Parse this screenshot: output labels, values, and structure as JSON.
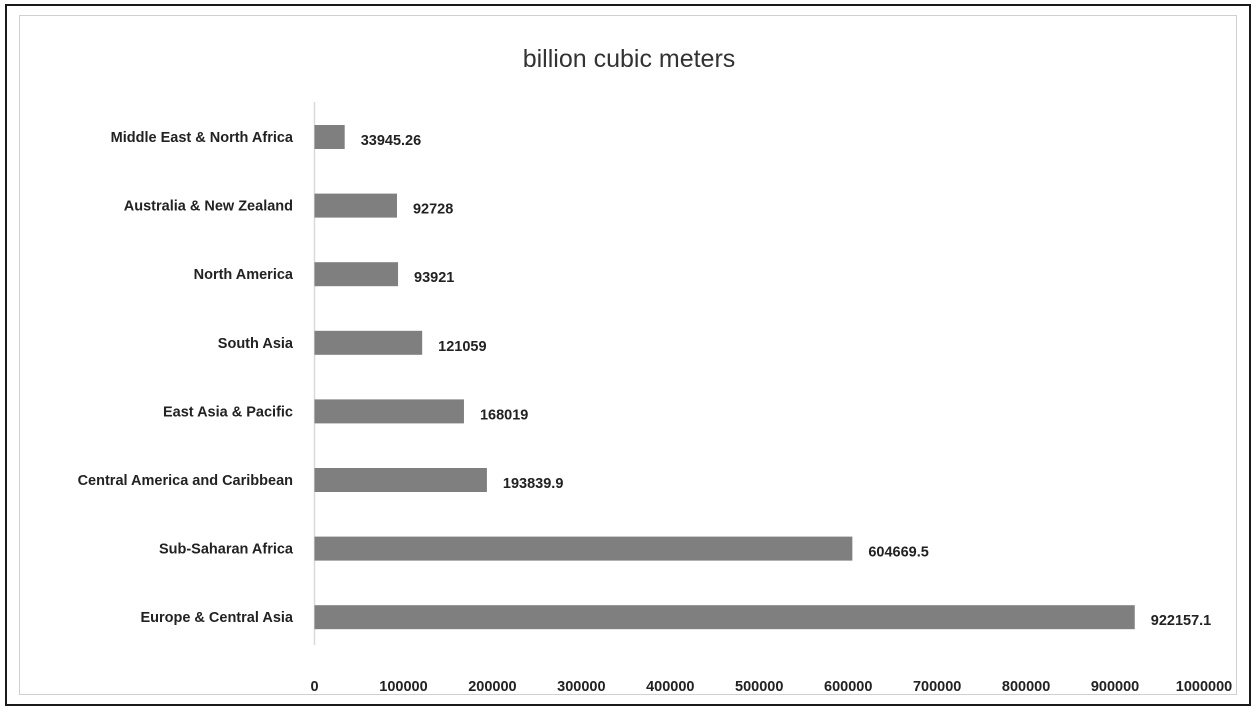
{
  "chart_data": {
    "type": "bar",
    "orientation": "horizontal",
    "title": "billion cubic meters",
    "xlabel": "",
    "ylabel": "",
    "categories": [
      "Middle East & North Africa",
      "Australia & New Zealand",
      "North America",
      "South Asia",
      "East Asia & Pacific",
      "Central America and Caribbean",
      "Sub-Saharan Africa",
      "Europe & Central Asia"
    ],
    "values": [
      33945.26,
      92728,
      93921,
      121059,
      168019,
      193839.9,
      604669.5,
      922157.1
    ],
    "data_labels": [
      "33945.26",
      "92728",
      "93921",
      "121059",
      "168019",
      "193839.9",
      "604669.5",
      "922157.1"
    ],
    "xlim": [
      0,
      1000000
    ],
    "xticks": [
      0,
      100000,
      200000,
      300000,
      400000,
      500000,
      600000,
      700000,
      800000,
      900000,
      1000000
    ],
    "xtick_labels": [
      "0",
      "100000",
      "200000",
      "300000",
      "400000",
      "500000",
      "600000",
      "700000",
      "800000",
      "900000",
      "1000000"
    ],
    "grid": false,
    "legend": "none",
    "bar_color": "#7f7f7f",
    "axis_color": "#d9d9d9"
  }
}
